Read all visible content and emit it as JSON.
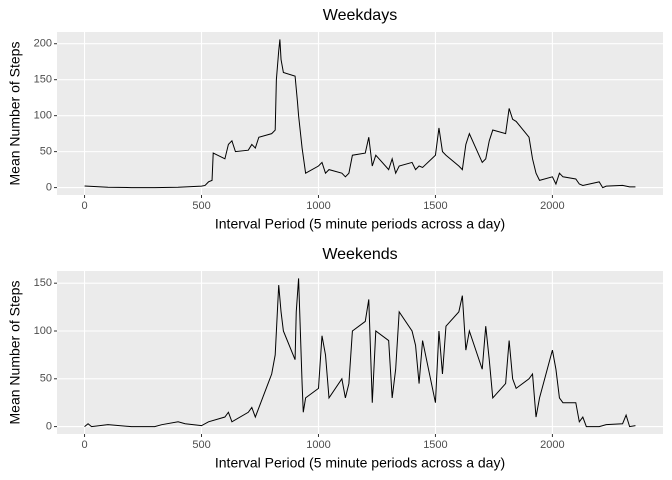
{
  "chart_data": [
    {
      "type": "line",
      "title": "Weekdays",
      "x_label": "Interval Period (5 minute periods across a day)",
      "y_label": "Mean Number of Steps",
      "color": "#000000",
      "grid": true,
      "x": [
        0,
        100,
        200,
        300,
        400,
        500,
        515,
        530,
        545,
        550,
        600,
        615,
        630,
        645,
        700,
        715,
        730,
        745,
        800,
        815,
        820,
        830,
        835,
        840,
        850,
        900,
        910,
        915,
        930,
        945,
        1000,
        1015,
        1030,
        1045,
        1100,
        1115,
        1130,
        1145,
        1200,
        1215,
        1230,
        1245,
        1300,
        1315,
        1330,
        1345,
        1400,
        1415,
        1430,
        1445,
        1500,
        1515,
        1530,
        1545,
        1600,
        1615,
        1630,
        1645,
        1700,
        1715,
        1730,
        1745,
        1800,
        1815,
        1830,
        1845,
        1900,
        1915,
        1930,
        1945,
        2000,
        2015,
        2030,
        2045,
        2100,
        2115,
        2130,
        2200,
        2215,
        2230,
        2300,
        2330,
        2355
      ],
      "values": [
        2.3,
        0.4,
        0,
        0,
        0.5,
        2,
        3,
        8,
        10,
        48,
        40,
        60,
        65,
        50,
        52,
        60,
        55,
        70,
        75,
        80,
        150,
        190,
        206,
        178,
        160,
        155,
        120,
        100,
        55,
        20,
        30,
        35,
        20,
        25,
        20,
        15,
        20,
        45,
        48,
        70,
        30,
        45,
        25,
        40,
        20,
        30,
        35,
        25,
        30,
        28,
        45,
        83,
        50,
        45,
        30,
        25,
        60,
        75,
        35,
        40,
        65,
        80,
        75,
        110,
        95,
        92,
        70,
        40,
        20,
        10,
        15,
        5,
        20,
        15,
        12,
        5,
        3,
        8,
        0,
        2,
        3,
        1,
        1
      ],
      "xlim": [
        -117.75,
        2472.75
      ],
      "ylim": [
        -10.3,
        216.3
      ],
      "xticks": [
        0,
        500,
        1000,
        1500,
        2000
      ],
      "yticks": [
        0,
        50,
        100,
        150,
        200
      ]
    },
    {
      "type": "line",
      "title": "Weekends",
      "x_label": "Interval Period (5 minute periods across a day)",
      "y_label": "Mean Number of Steps",
      "color": "#000000",
      "grid": true,
      "x": [
        0,
        15,
        30,
        100,
        200,
        300,
        330,
        400,
        430,
        500,
        530,
        600,
        615,
        630,
        700,
        715,
        730,
        800,
        815,
        830,
        840,
        850,
        900,
        905,
        915,
        930,
        935,
        945,
        1000,
        1015,
        1030,
        1045,
        1100,
        1115,
        1130,
        1145,
        1200,
        1215,
        1230,
        1245,
        1300,
        1315,
        1330,
        1345,
        1400,
        1415,
        1430,
        1445,
        1500,
        1515,
        1530,
        1545,
        1600,
        1615,
        1630,
        1645,
        1700,
        1715,
        1730,
        1745,
        1800,
        1815,
        1830,
        1845,
        1900,
        1915,
        1930,
        1945,
        2000,
        2015,
        2030,
        2045,
        2100,
        2115,
        2130,
        2145,
        2200,
        2230,
        2300,
        2315,
        2330,
        2355
      ],
      "values": [
        0,
        3,
        0,
        2,
        0,
        0,
        2,
        5,
        3,
        1,
        5,
        10,
        15,
        5,
        15,
        20,
        10,
        55,
        75,
        148,
        120,
        100,
        70,
        120,
        155,
        45,
        15,
        30,
        40,
        95,
        75,
        30,
        50,
        30,
        45,
        100,
        110,
        133,
        25,
        100,
        90,
        30,
        60,
        120,
        100,
        85,
        45,
        90,
        25,
        100,
        55,
        105,
        120,
        137,
        80,
        100,
        60,
        105,
        70,
        30,
        45,
        90,
        50,
        40,
        50,
        55,
        10,
        30,
        80,
        60,
        30,
        25,
        25,
        5,
        10,
        0,
        0,
        2,
        3,
        12,
        0,
        1
      ],
      "xlim": [
        -117.75,
        2472.75
      ],
      "ylim": [
        -7.75,
        162.75
      ],
      "xticks": [
        0,
        500,
        1000,
        1500,
        2000
      ],
      "yticks": [
        0,
        50,
        100,
        150
      ]
    }
  ]
}
